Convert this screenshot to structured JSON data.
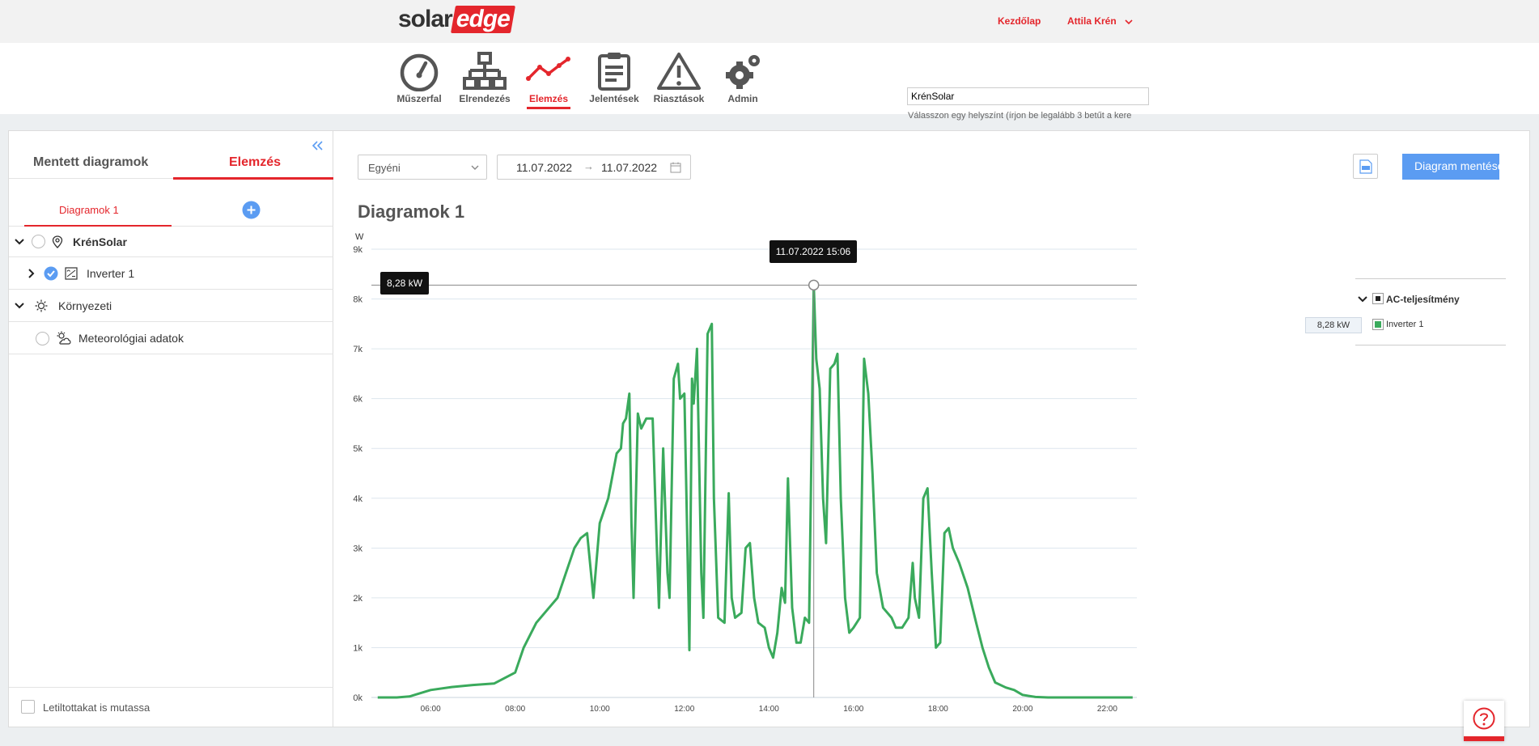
{
  "brand": {
    "part1": "solar",
    "part2": "edge"
  },
  "top": {
    "home": "Kezdőlap",
    "user": "Attila Krén"
  },
  "nav": [
    {
      "label": "Műszerfal",
      "icon": "gauge-icon"
    },
    {
      "label": "Elrendezés",
      "icon": "layout-icon"
    },
    {
      "label": "Elemzés",
      "icon": "analysis-icon"
    },
    {
      "label": "Jelentések",
      "icon": "reports-icon"
    },
    {
      "label": "Riasztások",
      "icon": "alerts-icon"
    },
    {
      "label": "Admin",
      "icon": "admin-icon"
    }
  ],
  "site": {
    "hint": "Válasszon egy helyszínt (írjon be legalább 3 betűt a kere",
    "value": "KrénSolar"
  },
  "left": {
    "tab_saved": "Mentett diagramok",
    "tab_analysis": "Elemzés",
    "subtab": "Diagramok 1",
    "tree_site": "KrénSolar",
    "tree_inverter": "Inverter 1",
    "tree_env": "Környezeti",
    "tree_meteo": "Meteorológiai adatok",
    "show_disabled": "Letiltottakat is mutassa"
  },
  "toolbar": {
    "period": "Egyéni",
    "date_from": "11.07.2022",
    "date_arrow": "→",
    "date_to": "11.07.2022",
    "save_label": "Diagram mentése"
  },
  "chart_title": "Diagramok 1",
  "tooltip": {
    "value": "8,28 kW",
    "time": "11.07.2022 15:06"
  },
  "legend": {
    "group": "AC-teljesítmény",
    "item": "Inverter 1",
    "value": "8,28 kW"
  },
  "colors": {
    "brand": "#e4262c",
    "series": "#3aaa5c",
    "button": "#5b9cf2"
  },
  "chart_data": {
    "type": "line",
    "ylabel": "W",
    "yticks": [
      "0k",
      "1k",
      "2k",
      "3k",
      "4k",
      "5k",
      "6k",
      "7k",
      "8k",
      "9k"
    ],
    "xticks": [
      "06:00",
      "08:00",
      "10:00",
      "12:00",
      "14:00",
      "16:00",
      "18:00",
      "20:00",
      "22:00"
    ],
    "xlim": [
      4.6,
      22.7
    ],
    "ylim": [
      0,
      9000
    ],
    "series": [
      {
        "name": "Inverter 1",
        "points": [
          [
            4.75,
            0
          ],
          [
            5.2,
            0
          ],
          [
            5.5,
            20
          ],
          [
            6.0,
            150
          ],
          [
            6.5,
            210
          ],
          [
            7.0,
            250
          ],
          [
            7.5,
            280
          ],
          [
            8.0,
            500
          ],
          [
            8.2,
            1000
          ],
          [
            8.5,
            1500
          ],
          [
            8.8,
            1800
          ],
          [
            9.0,
            2000
          ],
          [
            9.2,
            2500
          ],
          [
            9.4,
            3000
          ],
          [
            9.55,
            3200
          ],
          [
            9.7,
            3300
          ],
          [
            9.85,
            2000
          ],
          [
            10.0,
            3500
          ],
          [
            10.2,
            4000
          ],
          [
            10.4,
            4900
          ],
          [
            10.5,
            5000
          ],
          [
            10.55,
            5500
          ],
          [
            10.62,
            5600
          ],
          [
            10.7,
            6100
          ],
          [
            10.75,
            3500
          ],
          [
            10.8,
            2000
          ],
          [
            10.9,
            5700
          ],
          [
            10.98,
            5400
          ],
          [
            11.1,
            5600
          ],
          [
            11.25,
            5600
          ],
          [
            11.35,
            3000
          ],
          [
            11.4,
            1800
          ],
          [
            11.5,
            5000
          ],
          [
            11.6,
            2500
          ],
          [
            11.65,
            2000
          ],
          [
            11.75,
            6400
          ],
          [
            11.85,
            6700
          ],
          [
            11.9,
            6000
          ],
          [
            12.0,
            6100
          ],
          [
            12.05,
            4000
          ],
          [
            12.12,
            950
          ],
          [
            12.18,
            6400
          ],
          [
            12.22,
            5900
          ],
          [
            12.3,
            7000
          ],
          [
            12.4,
            2500
          ],
          [
            12.45,
            1600
          ],
          [
            12.55,
            7300
          ],
          [
            12.65,
            7500
          ],
          [
            12.7,
            4000
          ],
          [
            12.8,
            1600
          ],
          [
            12.95,
            1500
          ],
          [
            13.05,
            4100
          ],
          [
            13.12,
            2000
          ],
          [
            13.2,
            1600
          ],
          [
            13.35,
            1700
          ],
          [
            13.45,
            3000
          ],
          [
            13.55,
            3100
          ],
          [
            13.65,
            2000
          ],
          [
            13.75,
            1500
          ],
          [
            13.9,
            1400
          ],
          [
            14.0,
            1000
          ],
          [
            14.1,
            800
          ],
          [
            14.2,
            1300
          ],
          [
            14.3,
            2200
          ],
          [
            14.38,
            1900
          ],
          [
            14.45,
            4400
          ],
          [
            14.55,
            1800
          ],
          [
            14.65,
            1100
          ],
          [
            14.75,
            1100
          ],
          [
            14.85,
            1600
          ],
          [
            14.95,
            1500
          ],
          [
            15.06,
            8280
          ],
          [
            15.12,
            6800
          ],
          [
            15.2,
            6200
          ],
          [
            15.28,
            4000
          ],
          [
            15.35,
            3100
          ],
          [
            15.45,
            6600
          ],
          [
            15.55,
            6700
          ],
          [
            15.62,
            6900
          ],
          [
            15.7,
            4000
          ],
          [
            15.8,
            2000
          ],
          [
            15.9,
            1300
          ],
          [
            16.0,
            1400
          ],
          [
            16.15,
            1600
          ],
          [
            16.25,
            6800
          ],
          [
            16.35,
            6100
          ],
          [
            16.45,
            4500
          ],
          [
            16.55,
            2500
          ],
          [
            16.7,
            1800
          ],
          [
            16.9,
            1600
          ],
          [
            17.0,
            1400
          ],
          [
            17.15,
            1400
          ],
          [
            17.3,
            1600
          ],
          [
            17.4,
            2700
          ],
          [
            17.45,
            2000
          ],
          [
            17.55,
            1600
          ],
          [
            17.65,
            4000
          ],
          [
            17.75,
            4200
          ],
          [
            17.85,
            2500
          ],
          [
            17.95,
            1000
          ],
          [
            18.05,
            1100
          ],
          [
            18.15,
            3300
          ],
          [
            18.25,
            3400
          ],
          [
            18.35,
            3000
          ],
          [
            18.5,
            2700
          ],
          [
            18.7,
            2200
          ],
          [
            18.9,
            1500
          ],
          [
            19.05,
            1000
          ],
          [
            19.2,
            600
          ],
          [
            19.35,
            300
          ],
          [
            19.6,
            200
          ],
          [
            19.8,
            150
          ],
          [
            20.0,
            50
          ],
          [
            20.3,
            10
          ],
          [
            20.6,
            0
          ],
          [
            22.6,
            0
          ]
        ]
      }
    ],
    "cursor": {
      "x": 15.06,
      "y": 8280
    }
  }
}
